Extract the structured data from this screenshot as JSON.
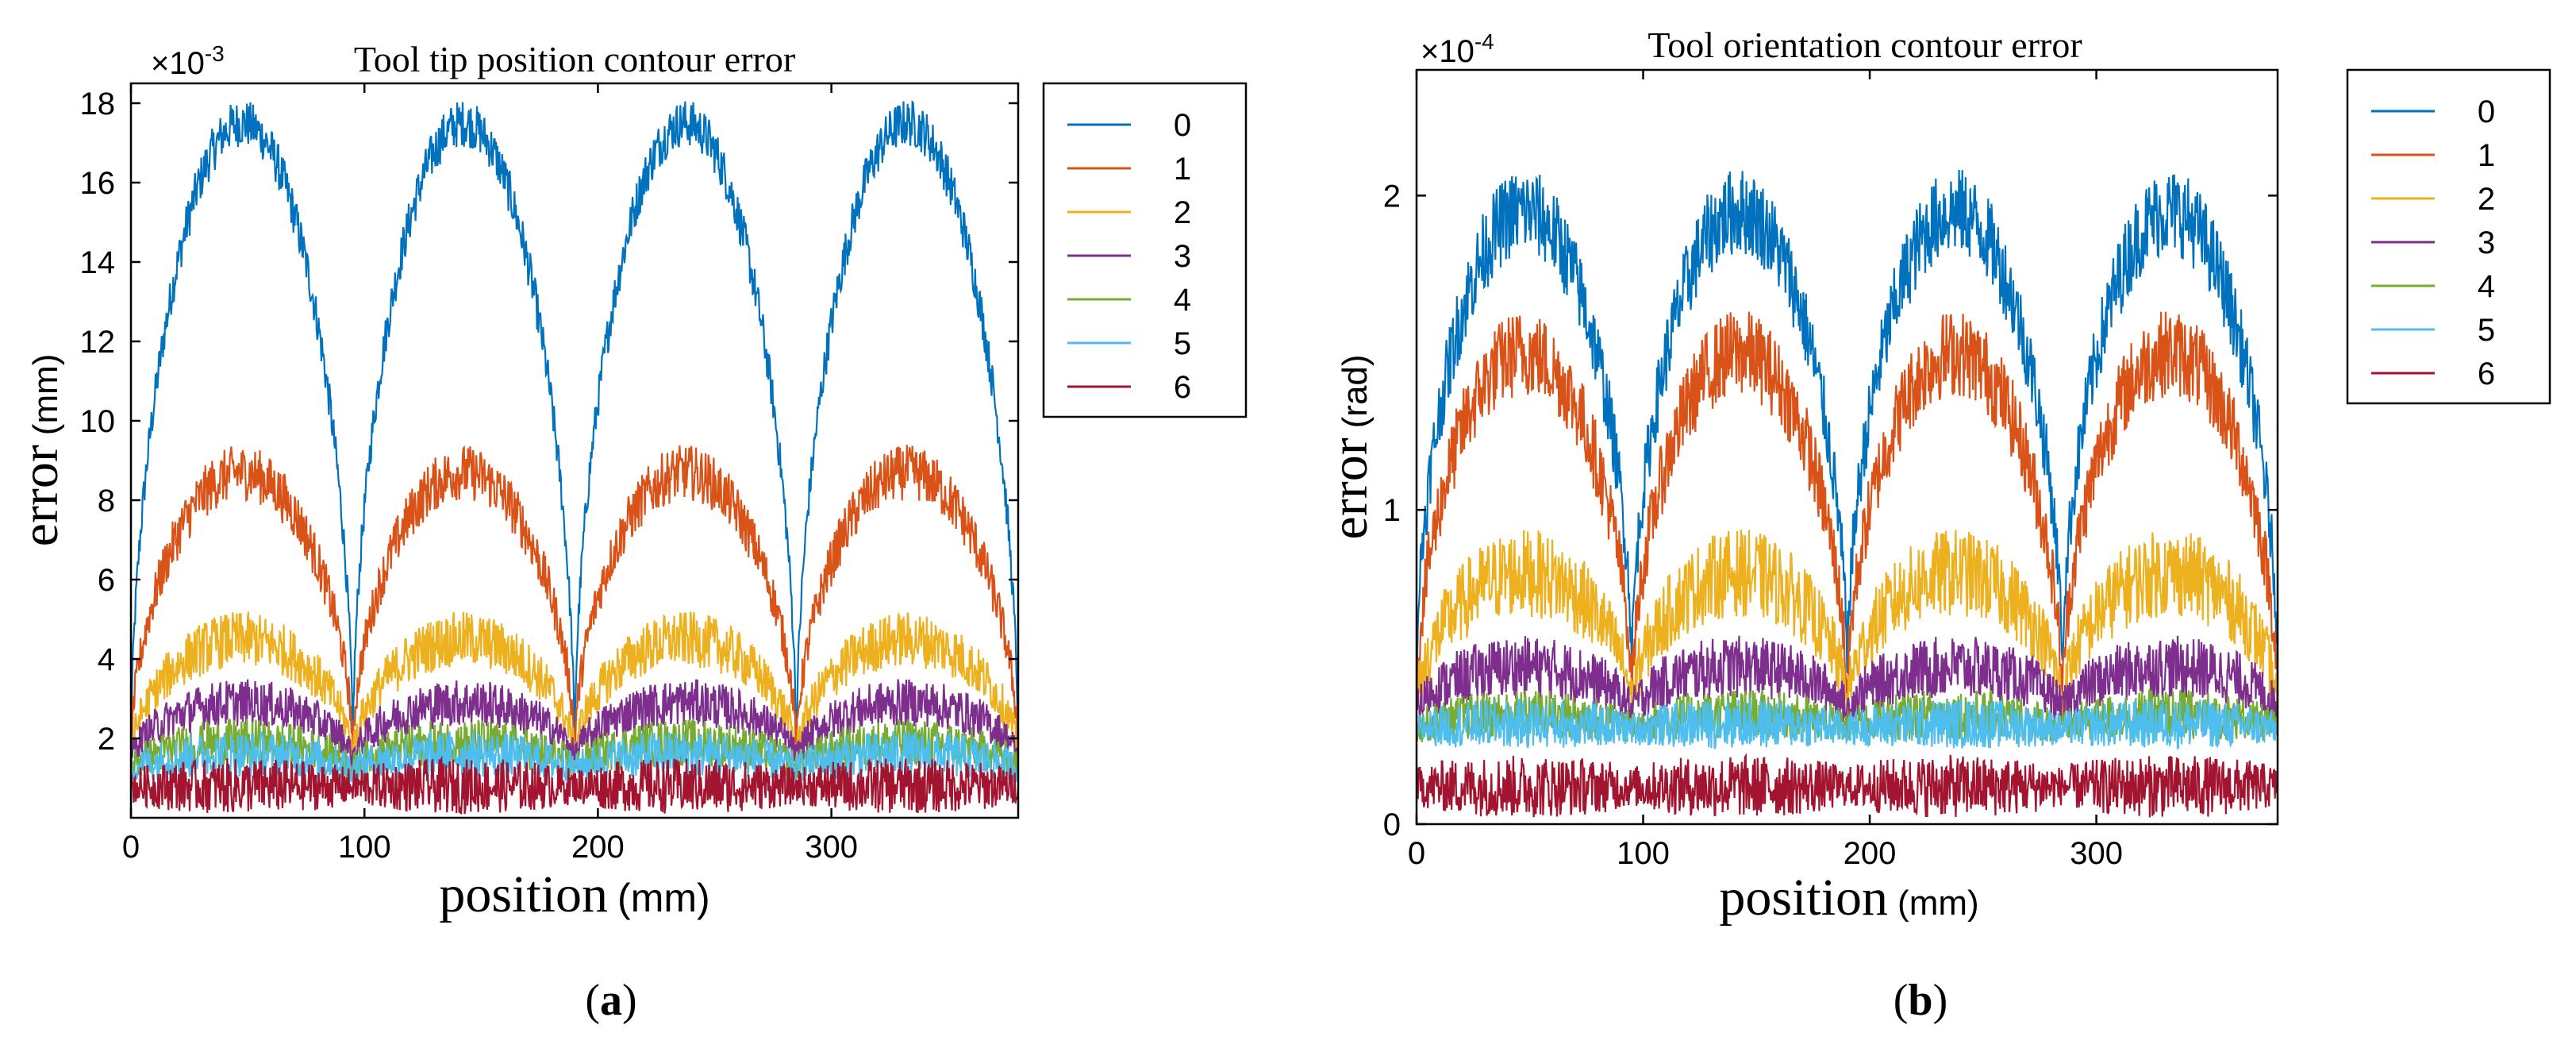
{
  "colors": {
    "series": [
      "#0072bd",
      "#d95319",
      "#edb120",
      "#7e2f8e",
      "#77ac30",
      "#4dbeee",
      "#a2142f"
    ],
    "axis": "#000000",
    "background": "#ffffff"
  },
  "chart_data": [
    {
      "type": "line",
      "panel_label": "a",
      "title": "Tool tip position contour error",
      "xlabel": "position",
      "xlabel_unit": "(mm)",
      "ylabel": "error",
      "ylabel_unit": "(mm)",
      "y_multiplier_base": "×10",
      "y_multiplier_exp": "-3",
      "xlim": [
        0,
        380
      ],
      "ylim": [
        0,
        18.5
      ],
      "xticks": [
        0,
        100,
        200,
        300
      ],
      "yticks": [
        2,
        4,
        6,
        8,
        10,
        12,
        14,
        16,
        18
      ],
      "legend_position": "outside-right",
      "arch_period_mm": 95,
      "arch_centers_mm": [
        47.5,
        142.5,
        237.5,
        332.5
      ],
      "series": [
        {
          "name": "0",
          "baseline": 1.2,
          "peak": 17.5,
          "noise": 0.6
        },
        {
          "name": "1",
          "baseline": 1.4,
          "peak": 8.7,
          "noise": 0.7
        },
        {
          "name": "2",
          "baseline": 1.4,
          "peak": 4.5,
          "noise": 0.7
        },
        {
          "name": "3",
          "baseline": 1.4,
          "peak": 2.9,
          "noise": 0.6
        },
        {
          "name": "4",
          "baseline": 1.2,
          "peak": 1.9,
          "noise": 0.6
        },
        {
          "name": "5",
          "baseline": 1.2,
          "peak": 1.6,
          "noise": 0.6
        },
        {
          "name": "6",
          "baseline": 0.8,
          "peak": 0.8,
          "noise": 0.7
        }
      ]
    },
    {
      "type": "line",
      "panel_label": "b",
      "title": "Tool orientation contour error",
      "xlabel": "position",
      "xlabel_unit": "(mm)",
      "ylabel": "error",
      "ylabel_unit": "(rad)",
      "y_multiplier_base": "×10",
      "y_multiplier_exp": "-4",
      "xlim": [
        0,
        380
      ],
      "ylim": [
        0,
        2.4
      ],
      "xticks": [
        0,
        100,
        200,
        300
      ],
      "yticks": [
        0,
        1,
        2
      ],
      "legend_position": "outside-right",
      "arch_period_mm": 95,
      "arch_centers_mm": [
        47.5,
        142.5,
        237.5,
        332.5
      ],
      "series": [
        {
          "name": "0",
          "baseline": 0.45,
          "peak": 1.95,
          "noise": 0.14
        },
        {
          "name": "1",
          "baseline": 0.35,
          "peak": 1.5,
          "noise": 0.14
        },
        {
          "name": "2",
          "baseline": 0.35,
          "peak": 0.8,
          "noise": 0.14
        },
        {
          "name": "3",
          "baseline": 0.35,
          "peak": 0.5,
          "noise": 0.1
        },
        {
          "name": "4",
          "baseline": 0.3,
          "peak": 0.35,
          "noise": 0.08
        },
        {
          "name": "5",
          "baseline": 0.3,
          "peak": 0.32,
          "noise": 0.08
        },
        {
          "name": "6",
          "baseline": 0.12,
          "peak": 0.12,
          "noise": 0.1
        }
      ]
    }
  ]
}
